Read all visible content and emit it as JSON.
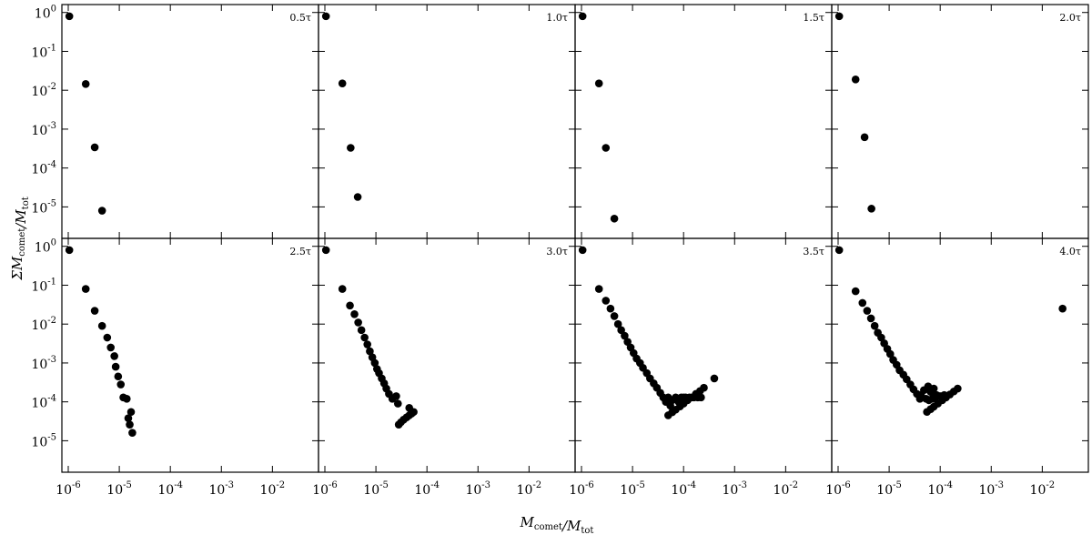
{
  "chart_data": [
    {
      "type": "scatter",
      "title": "0.5τ",
      "ylabel": "ΣM_{comet}/M_{tot}",
      "xlim": [
        7.5e-07,
        0.08
      ],
      "ylim": [
        1.55e-06,
        1.6
      ],
      "yticks": [
        {
          "value": 1,
          "label": "10^{0}"
        },
        {
          "value": 0.1,
          "label": "10^{-1}"
        },
        {
          "value": 0.01,
          "label": "10^{-2}"
        },
        {
          "value": 0.001,
          "label": "10^{-3}"
        },
        {
          "value": 0.0001,
          "label": "10^{-4}"
        },
        {
          "value": 1e-05,
          "label": "10^{-5}"
        }
      ],
      "color": "#000000",
      "x": [
        1.05e-06,
        2.2e-06,
        3.3e-06,
        4.6e-06
      ],
      "y": [
        0.8,
        0.0145,
        0.00034,
        8e-06
      ]
    },
    {
      "type": "scatter",
      "title": "1.0τ",
      "xlim": [
        7.5e-07,
        0.08
      ],
      "ylim": [
        1.55e-06,
        1.6
      ],
      "color": "#000000",
      "x": [
        1.05e-06,
        2.2e-06,
        3.2e-06,
        4.4e-06
      ],
      "y": [
        0.8,
        0.015,
        0.00033,
        1.8e-05
      ]
    },
    {
      "type": "scatter",
      "title": "1.5τ",
      "xlim": [
        7.5e-07,
        0.08
      ],
      "ylim": [
        1.55e-06,
        1.6
      ],
      "color": "#000000",
      "x": [
        1.05e-06,
        2.2e-06,
        3e-06,
        4.4e-06
      ],
      "y": [
        0.8,
        0.015,
        0.00033,
        5e-06
      ]
    },
    {
      "type": "scatter",
      "title": "2.0τ",
      "xlim": [
        7.5e-07,
        0.08
      ],
      "ylim": [
        1.55e-06,
        1.6
      ],
      "color": "#000000",
      "x": [
        1.05e-06,
        2.2e-06,
        3.3e-06,
        4.5e-06
      ],
      "y": [
        0.8,
        0.019,
        0.00062,
        9e-06
      ]
    },
    {
      "type": "scatter",
      "title": "2.5τ",
      "xlabel": "M_{comet}/M_{tot}",
      "xlim": [
        7.5e-07,
        0.08
      ],
      "ylim": [
        1.55e-06,
        1.6
      ],
      "yticks": [
        {
          "value": 1,
          "label": "10^{0}"
        },
        {
          "value": 0.1,
          "label": "10^{-1}"
        },
        {
          "value": 0.01,
          "label": "10^{-2}"
        },
        {
          "value": 0.001,
          "label": "10^{-3}"
        },
        {
          "value": 0.0001,
          "label": "10^{-4}"
        },
        {
          "value": 1e-05,
          "label": "10^{-5}"
        }
      ],
      "xticks": [
        {
          "value": 1e-06,
          "label": "10^{-6}"
        },
        {
          "value": 1e-05,
          "label": "10^{-5}"
        },
        {
          "value": 0.0001,
          "label": "10^{-4}"
        },
        {
          "value": 0.001,
          "label": "10^{-3}"
        },
        {
          "value": 0.01,
          "label": "10^{-2}"
        }
      ],
      "color": "#000000",
      "x": [
        1.05e-06,
        2.2e-06,
        3.3e-06,
        4.6e-06,
        5.8e-06,
        6.8e-06,
        8e-06,
        8.5e-06,
        9.5e-06,
        1.07e-05,
        1.2e-05,
        1.4e-05,
        1.5e-05,
        1.7e-05,
        1.6e-05,
        1.8e-05
      ],
      "y": [
        0.8,
        0.08,
        0.022,
        0.009,
        0.0045,
        0.0025,
        0.0015,
        0.0008,
        0.00045,
        0.00028,
        0.00013,
        0.00012,
        3.8e-05,
        5.5e-05,
        2.6e-05,
        1.6e-05
      ]
    },
    {
      "type": "scatter",
      "title": "3.0τ",
      "xlim": [
        7.5e-07,
        0.08
      ],
      "ylim": [
        1.55e-06,
        1.6
      ],
      "xticks": [
        {
          "value": 1e-06,
          "label": "10^{-6}"
        },
        {
          "value": 1e-05,
          "label": "10^{-5}"
        },
        {
          "value": 0.0001,
          "label": "10^{-4}"
        },
        {
          "value": 0.001,
          "label": "10^{-3}"
        },
        {
          "value": 0.01,
          "label": "10^{-2}"
        }
      ],
      "color": "#000000",
      "x": [
        1.05e-06,
        2.2e-06,
        3.1e-06,
        3.8e-06,
        4.5e-06,
        5.2e-06,
        6e-06,
        6.8e-06,
        7.6e-06,
        8.5e-06,
        9.5e-06,
        1.05e-05,
        1.15e-05,
        1.3e-05,
        1.45e-05,
        1.6e-05,
        1.8e-05,
        2.1e-05,
        2.5e-05,
        2.7e-05,
        2.8e-05,
        3.1e-05,
        3.5e-05,
        4e-05,
        4.5e-05,
        5e-05,
        5.5e-05,
        4.5e-05
      ],
      "y": [
        0.8,
        0.08,
        0.03,
        0.018,
        0.011,
        0.007,
        0.0045,
        0.003,
        0.002,
        0.0014,
        0.001,
        0.0007,
        0.00055,
        0.0004,
        0.0003,
        0.00022,
        0.00016,
        0.00012,
        0.00014,
        9e-05,
        2.6e-05,
        3e-05,
        3.5e-05,
        4e-05,
        4.5e-05,
        5e-05,
        5.5e-05,
        7e-05
      ]
    },
    {
      "type": "scatter",
      "title": "3.5τ",
      "xlim": [
        7.5e-07,
        0.08
      ],
      "ylim": [
        1.55e-06,
        1.6
      ],
      "xticks": [
        {
          "value": 1e-06,
          "label": "10^{-6}"
        },
        {
          "value": 1e-05,
          "label": "10^{-5}"
        },
        {
          "value": 0.0001,
          "label": "10^{-4}"
        },
        {
          "value": 0.001,
          "label": "10^{-3}"
        },
        {
          "value": 0.01,
          "label": "10^{-2}"
        }
      ],
      "color": "#000000",
      "x": [
        1.05e-06,
        2.2e-06,
        3e-06,
        3.7e-06,
        4.4e-06,
        5.2e-06,
        6e-06,
        7e-06,
        8e-06,
        9.2e-06,
        1.05e-05,
        1.2e-05,
        1.4e-05,
        1.6e-05,
        1.9e-05,
        2.2e-05,
        2.6e-05,
        3e-05,
        3.5e-05,
        4e-05,
        4.5e-05,
        5e-05,
        5.5e-05,
        6e-05,
        7e-05,
        8e-05,
        9e-05,
        0.0001,
        5e-05,
        6e-05,
        7e-05,
        8.5e-05,
        0.0001,
        0.00012,
        0.000145,
        0.000175,
        0.00021,
        0.00025,
        0.00011,
        0.00013,
        0.00016,
        0.00019,
        0.00022,
        0.0004
      ],
      "y": [
        0.8,
        0.08,
        0.04,
        0.025,
        0.016,
        0.01,
        0.007,
        0.005,
        0.0035,
        0.0025,
        0.0018,
        0.0013,
        0.001,
        0.00075,
        0.00055,
        0.0004,
        0.0003,
        0.00023,
        0.00017,
        0.00013,
        0.0001,
        0.00013,
        8e-05,
        0.00011,
        0.00013,
        0.0001,
        0.00013,
        0.00013,
        4.5e-05,
        5.4e-05,
        6.3e-05,
        7.6e-05,
        9e-05,
        0.00011,
        0.00013,
        0.00016,
        0.00019,
        0.00023,
        0.00013,
        0.00013,
        0.00013,
        0.00013,
        0.00013,
        0.0004
      ]
    },
    {
      "type": "scatter",
      "title": "4.0τ",
      "xlim": [
        7.5e-07,
        0.08
      ],
      "ylim": [
        1.55e-06,
        1.6
      ],
      "xticks": [
        {
          "value": 1e-06,
          "label": "10^{-6}"
        },
        {
          "value": 1e-05,
          "label": "10^{-5}"
        },
        {
          "value": 0.0001,
          "label": "10^{-4}"
        },
        {
          "value": 0.001,
          "label": "10^{-3}"
        },
        {
          "value": 0.01,
          "label": "10^{-2}"
        }
      ],
      "color": "#000000",
      "x": [
        1.05e-06,
        2.2e-06,
        3e-06,
        3.7e-06,
        4.4e-06,
        5.2e-06,
        6e-06,
        7e-06,
        8e-06,
        9.2e-06,
        1.05e-05,
        1.2e-05,
        1.4e-05,
        1.6e-05,
        1.9e-05,
        2.2e-05,
        2.6e-05,
        3e-05,
        3.5e-05,
        4e-05,
        4.2e-05,
        4.8e-05,
        5.3e-05,
        5.8e-05,
        6.5e-05,
        7.5e-05,
        8.5e-05,
        5.5e-05,
        6.5e-05,
        7.5e-05,
        9e-05,
        0.00011,
        0.00013,
        0.000155,
        0.000185,
        0.00022,
        6e-05,
        7e-05,
        8e-05,
        0.0001,
        0.00012,
        0.025
      ],
      "y": [
        0.8,
        0.07,
        0.035,
        0.022,
        0.014,
        0.009,
        0.006,
        0.0045,
        0.0032,
        0.0023,
        0.0017,
        0.0012,
        0.0009,
        0.00065,
        0.0005,
        0.00038,
        0.00028,
        0.00021,
        0.00016,
        0.00012,
        0.00015,
        0.0002,
        0.00012,
        0.00025,
        0.00018,
        0.00022,
        0.00015,
        5.5e-05,
        6.5e-05,
        7.5e-05,
        9e-05,
        0.00011,
        0.00013,
        0.000155,
        0.000185,
        0.00022,
        0.00011,
        0.00012,
        0.00013,
        0.00014,
        0.00015,
        0.025
      ]
    }
  ]
}
